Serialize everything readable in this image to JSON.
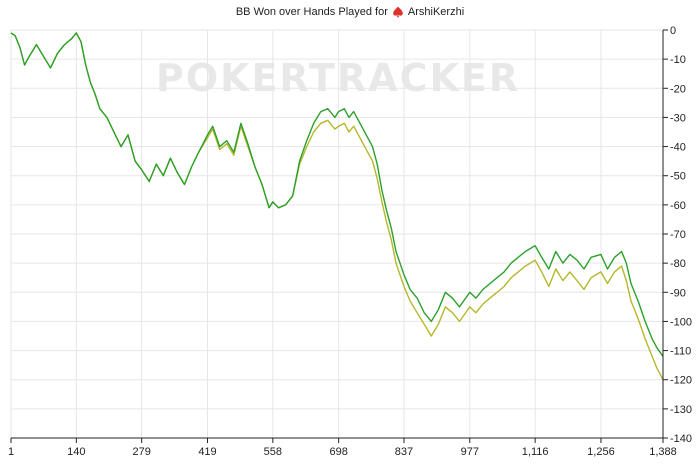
{
  "title": {
    "prefix": "BB Won over Hands Played for",
    "player": "ArshiKerzhi"
  },
  "watermark": "POKERTRACKER",
  "colors": {
    "series_primary": "#2ca02c",
    "series_secondary": "#b5b82b",
    "grid": "#e6e6e6",
    "axis": "#222222",
    "brand_icon": "#e0322a"
  },
  "chart_data": {
    "type": "line",
    "title": "BB Won over Hands Played for ArshiKerzhi",
    "xlabel": "",
    "ylabel": "",
    "xlim": [
      1,
      1388
    ],
    "ylim": [
      -140,
      0
    ],
    "x_ticks": [
      1,
      140,
      279,
      419,
      558,
      698,
      837,
      977,
      1116,
      1256,
      1388
    ],
    "x_tick_labels": [
      "1",
      "140",
      "279",
      "419",
      "558",
      "698",
      "837",
      "977",
      "1,116",
      "1,256",
      "1,388"
    ],
    "y_ticks": [
      0,
      -10,
      -20,
      -30,
      -40,
      -50,
      -60,
      -70,
      -80,
      -90,
      -100,
      -110,
      -120,
      -130,
      -140
    ],
    "grid": true,
    "legend": "none",
    "series": [
      {
        "color": "#2ca02c",
        "points": [
          [
            1,
            -1
          ],
          [
            10,
            -2
          ],
          [
            20,
            -6
          ],
          [
            30,
            -12
          ],
          [
            40,
            -9
          ],
          [
            55,
            -5
          ],
          [
            70,
            -9
          ],
          [
            85,
            -13
          ],
          [
            100,
            -8
          ],
          [
            115,
            -5
          ],
          [
            130,
            -3
          ],
          [
            140,
            -1
          ],
          [
            150,
            -4
          ],
          [
            160,
            -12
          ],
          [
            170,
            -18
          ],
          [
            180,
            -22
          ],
          [
            190,
            -27
          ],
          [
            205,
            -30
          ],
          [
            220,
            -35
          ],
          [
            235,
            -40
          ],
          [
            250,
            -36
          ],
          [
            265,
            -45
          ],
          [
            279,
            -48
          ],
          [
            295,
            -52
          ],
          [
            310,
            -46
          ],
          [
            325,
            -50
          ],
          [
            340,
            -44
          ],
          [
            355,
            -49
          ],
          [
            370,
            -53
          ],
          [
            385,
            -47
          ],
          [
            400,
            -42
          ],
          [
            419,
            -36
          ],
          [
            430,
            -33
          ],
          [
            445,
            -40
          ],
          [
            460,
            -38
          ],
          [
            475,
            -42
          ],
          [
            490,
            -32
          ],
          [
            505,
            -39
          ],
          [
            520,
            -47
          ],
          [
            535,
            -53
          ],
          [
            550,
            -61
          ],
          [
            558,
            -59
          ],
          [
            570,
            -61
          ],
          [
            585,
            -60
          ],
          [
            600,
            -57
          ],
          [
            615,
            -45
          ],
          [
            630,
            -38
          ],
          [
            645,
            -32
          ],
          [
            660,
            -28
          ],
          [
            675,
            -27
          ],
          [
            690,
            -30
          ],
          [
            698,
            -28
          ],
          [
            710,
            -27
          ],
          [
            720,
            -30
          ],
          [
            730,
            -28
          ],
          [
            740,
            -31
          ],
          [
            750,
            -34
          ],
          [
            760,
            -37
          ],
          [
            770,
            -40
          ],
          [
            780,
            -46
          ],
          [
            790,
            -55
          ],
          [
            800,
            -62
          ],
          [
            810,
            -68
          ],
          [
            820,
            -76
          ],
          [
            837,
            -84
          ],
          [
            850,
            -89
          ],
          [
            865,
            -92
          ],
          [
            880,
            -97
          ],
          [
            895,
            -100
          ],
          [
            910,
            -96
          ],
          [
            925,
            -90
          ],
          [
            940,
            -92
          ],
          [
            955,
            -95
          ],
          [
            977,
            -90
          ],
          [
            990,
            -92
          ],
          [
            1005,
            -89
          ],
          [
            1020,
            -87
          ],
          [
            1035,
            -85
          ],
          [
            1050,
            -83
          ],
          [
            1065,
            -80
          ],
          [
            1080,
            -78
          ],
          [
            1095,
            -76
          ],
          [
            1116,
            -74
          ],
          [
            1130,
            -78
          ],
          [
            1145,
            -82
          ],
          [
            1160,
            -76
          ],
          [
            1175,
            -80
          ],
          [
            1190,
            -77
          ],
          [
            1205,
            -79
          ],
          [
            1220,
            -82
          ],
          [
            1235,
            -78
          ],
          [
            1256,
            -77
          ],
          [
            1270,
            -82
          ],
          [
            1285,
            -78
          ],
          [
            1300,
            -76
          ],
          [
            1310,
            -80
          ],
          [
            1320,
            -87
          ],
          [
            1335,
            -93
          ],
          [
            1350,
            -100
          ],
          [
            1365,
            -106
          ],
          [
            1375,
            -109
          ],
          [
            1388,
            -112
          ]
        ]
      },
      {
        "color": "#b5b82b",
        "points": [
          [
            1,
            -1
          ],
          [
            10,
            -2
          ],
          [
            20,
            -6
          ],
          [
            30,
            -12
          ],
          [
            40,
            -9
          ],
          [
            55,
            -5
          ],
          [
            70,
            -9
          ],
          [
            85,
            -13
          ],
          [
            100,
            -8
          ],
          [
            115,
            -5
          ],
          [
            130,
            -3
          ],
          [
            140,
            -1
          ],
          [
            150,
            -4
          ],
          [
            160,
            -12
          ],
          [
            170,
            -18
          ],
          [
            180,
            -22
          ],
          [
            190,
            -27
          ],
          [
            205,
            -30
          ],
          [
            220,
            -35
          ],
          [
            235,
            -40
          ],
          [
            250,
            -36
          ],
          [
            265,
            -45
          ],
          [
            279,
            -48
          ],
          [
            295,
            -52
          ],
          [
            310,
            -46
          ],
          [
            325,
            -50
          ],
          [
            340,
            -44
          ],
          [
            355,
            -49
          ],
          [
            370,
            -53
          ],
          [
            385,
            -47
          ],
          [
            400,
            -42
          ],
          [
            419,
            -37
          ],
          [
            430,
            -34
          ],
          [
            445,
            -41
          ],
          [
            460,
            -39
          ],
          [
            475,
            -43
          ],
          [
            490,
            -33
          ],
          [
            505,
            -40
          ],
          [
            520,
            -47
          ],
          [
            535,
            -53
          ],
          [
            550,
            -61
          ],
          [
            558,
            -59
          ],
          [
            570,
            -61
          ],
          [
            585,
            -60
          ],
          [
            600,
            -57
          ],
          [
            615,
            -46
          ],
          [
            630,
            -40
          ],
          [
            645,
            -35
          ],
          [
            660,
            -32
          ],
          [
            675,
            -31
          ],
          [
            690,
            -34
          ],
          [
            698,
            -33
          ],
          [
            710,
            -32
          ],
          [
            720,
            -35
          ],
          [
            730,
            -33
          ],
          [
            740,
            -36
          ],
          [
            750,
            -39
          ],
          [
            760,
            -42
          ],
          [
            770,
            -45
          ],
          [
            780,
            -51
          ],
          [
            790,
            -59
          ],
          [
            800,
            -66
          ],
          [
            810,
            -72
          ],
          [
            820,
            -80
          ],
          [
            837,
            -88
          ],
          [
            850,
            -93
          ],
          [
            865,
            -97
          ],
          [
            880,
            -101
          ],
          [
            895,
            -105
          ],
          [
            910,
            -101
          ],
          [
            925,
            -95
          ],
          [
            940,
            -97
          ],
          [
            955,
            -100
          ],
          [
            977,
            -95
          ],
          [
            990,
            -97
          ],
          [
            1005,
            -94
          ],
          [
            1020,
            -92
          ],
          [
            1035,
            -90
          ],
          [
            1050,
            -88
          ],
          [
            1065,
            -85
          ],
          [
            1080,
            -83
          ],
          [
            1095,
            -81
          ],
          [
            1116,
            -79
          ],
          [
            1130,
            -83
          ],
          [
            1145,
            -88
          ],
          [
            1160,
            -82
          ],
          [
            1175,
            -86
          ],
          [
            1190,
            -83
          ],
          [
            1205,
            -86
          ],
          [
            1220,
            -89
          ],
          [
            1235,
            -85
          ],
          [
            1256,
            -83
          ],
          [
            1270,
            -87
          ],
          [
            1285,
            -83
          ],
          [
            1300,
            -81
          ],
          [
            1310,
            -86
          ],
          [
            1320,
            -93
          ],
          [
            1335,
            -99
          ],
          [
            1350,
            -106
          ],
          [
            1365,
            -112
          ],
          [
            1375,
            -116
          ],
          [
            1388,
            -120
          ]
        ]
      }
    ]
  }
}
